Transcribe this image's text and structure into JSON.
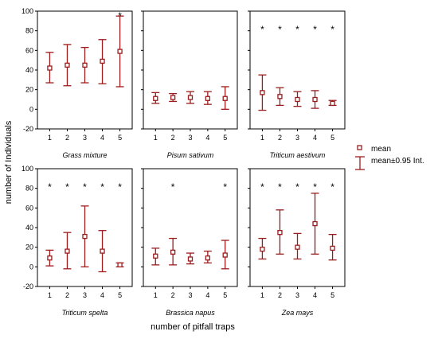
{
  "chart_data": {
    "type": "error-bar",
    "ylabel": "number of Individuals",
    "xlabel": "number of pitfall traps",
    "ylim": [
      -20,
      100
    ],
    "yticks": [
      -20,
      0,
      20,
      40,
      60,
      80,
      100
    ],
    "categories": [
      "1",
      "2",
      "3",
      "4",
      "5"
    ],
    "grid": false,
    "legend": {
      "position": "right",
      "entries": [
        {
          "label": "mean",
          "marker": "square"
        },
        {
          "label": "mean±0.95 Int.",
          "marker": "errorbar"
        }
      ]
    },
    "colors": {
      "series": "#9b1c1c",
      "axes": "#000000"
    },
    "panels": [
      {
        "title": "Grass mixture",
        "mean": [
          42,
          45,
          45,
          49,
          59
        ],
        "lower": [
          27,
          24,
          27,
          26,
          23
        ],
        "upper": [
          58,
          66,
          63,
          71,
          95
        ],
        "annotations": [
          "",
          "",
          "",
          "",
          "*"
        ]
      },
      {
        "title": "Pisum sativum",
        "mean": [
          11,
          12,
          12,
          11,
          11
        ],
        "lower": [
          6,
          8,
          6,
          5,
          0
        ],
        "upper": [
          17,
          16,
          18,
          18,
          23
        ],
        "annotations": [
          "",
          "",
          "",
          "",
          ""
        ]
      },
      {
        "title": "Triticum aestivum",
        "mean": [
          17,
          13,
          10,
          10,
          6
        ],
        "lower": [
          -1,
          4,
          3,
          1,
          4
        ],
        "upper": [
          35,
          22,
          18,
          19,
          9
        ],
        "annotations": [
          "*",
          "*",
          "*",
          "*",
          "*"
        ]
      },
      {
        "title": "Triticum spelta",
        "mean": [
          9,
          16,
          31,
          16,
          2
        ],
        "lower": [
          1,
          -2,
          0,
          -5,
          0
        ],
        "upper": [
          17,
          35,
          62,
          37,
          4
        ],
        "annotations": [
          "*",
          "*",
          "*",
          "*",
          "*"
        ]
      },
      {
        "title": "Brassica napus",
        "mean": [
          11,
          15,
          8,
          9,
          12
        ],
        "lower": [
          2,
          2,
          3,
          4,
          -2
        ],
        "upper": [
          19,
          29,
          14,
          16,
          27
        ],
        "annotations": [
          "",
          "*",
          "",
          "",
          "*"
        ]
      },
      {
        "title": "Zea mays",
        "mean": [
          18,
          35,
          20,
          44,
          19
        ],
        "lower": [
          8,
          13,
          8,
          13,
          7
        ],
        "upper": [
          29,
          58,
          34,
          75,
          33
        ],
        "annotations": [
          "*",
          "*",
          "*",
          "*",
          "*"
        ]
      }
    ]
  }
}
